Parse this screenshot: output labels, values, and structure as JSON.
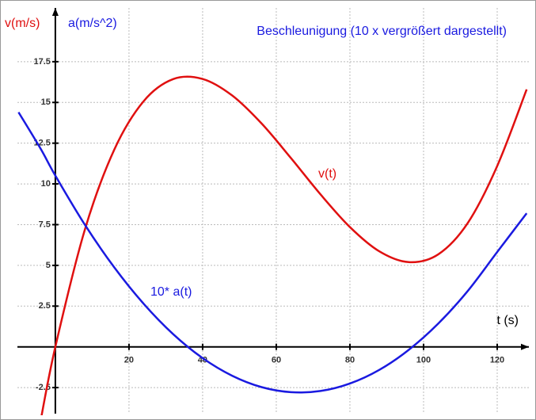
{
  "chart_data": {
    "type": "line",
    "title": "Beschleunigung  (10 x vergrößert dargestellt)",
    "ylabel": "v(m/s)",
    "ylabel2": "a(m/s^2)",
    "xlabel": "t (s)",
    "x": [
      -10,
      -4,
      0,
      8,
      16,
      24,
      32,
      40,
      48,
      56,
      64,
      72,
      80,
      88,
      96,
      104,
      112,
      120,
      128
    ],
    "series": [
      {
        "name": "v(t)",
        "color": "#e01010",
        "values": [
          null,
          -4.53,
          0,
          7.18,
          12.1,
          15.08,
          16.43,
          16.44,
          15.43,
          13.71,
          11.58,
          9.36,
          7.35,
          5.86,
          5.2,
          5.68,
          7.6,
          11.1,
          15.8
        ]
      },
      {
        "name": "10* a(t)",
        "color": "#1a1ae0",
        "values": [
          14.4,
          12.16,
          10.51,
          7.5,
          4.88,
          2.64,
          0.78,
          -0.69,
          -1.77,
          -2.47,
          -2.78,
          -2.71,
          -2.25,
          -1.41,
          -0.18,
          1.43,
          3.43,
          5.82,
          8.2
        ]
      }
    ],
    "xlim": [
      -10.3,
      128.6
    ],
    "ylim": [
      -4.1,
      20.8
    ],
    "xticks": [
      20,
      40,
      60,
      80,
      100,
      120
    ],
    "yticks": [
      -2.5,
      2.5,
      5,
      7.5,
      10,
      12.5,
      15,
      17.5
    ],
    "grid": true
  }
}
